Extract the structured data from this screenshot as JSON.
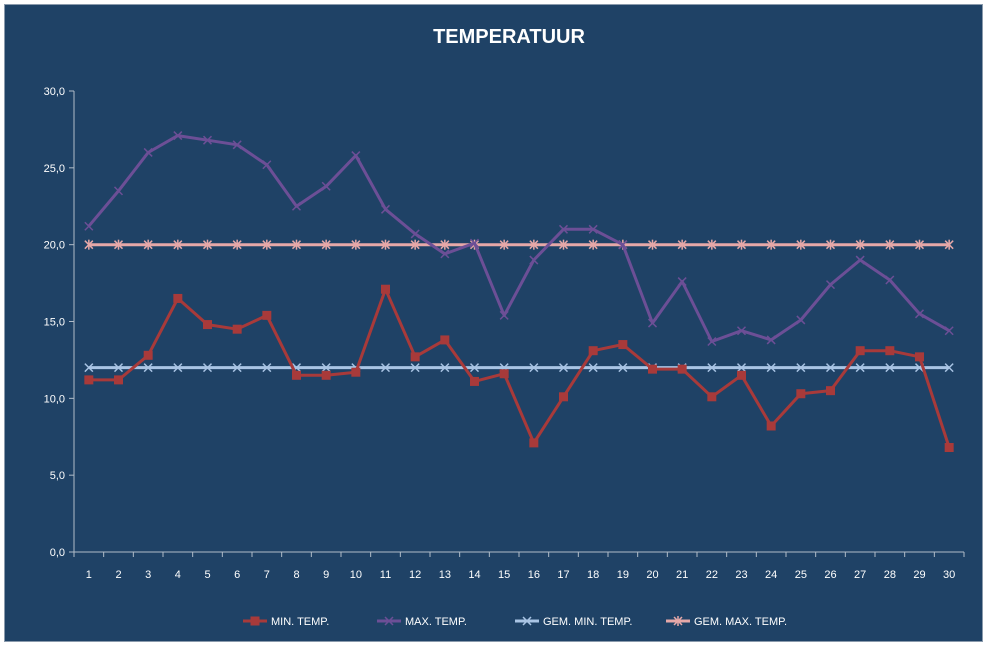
{
  "chart_data": {
    "type": "line",
    "title": "TEMPERATUUR",
    "xlabel": "",
    "ylabel": "",
    "categories": [
      "1",
      "2",
      "3",
      "4",
      "5",
      "6",
      "7",
      "8",
      "9",
      "10",
      "11",
      "12",
      "13",
      "14",
      "15",
      "16",
      "17",
      "18",
      "19",
      "20",
      "21",
      "22",
      "23",
      "24",
      "25",
      "26",
      "27",
      "28",
      "29",
      "30"
    ],
    "ylim": [
      0,
      30
    ],
    "y_ticks": [
      "0,0",
      "5,0",
      "10,0",
      "15,0",
      "20,0",
      "25,0",
      "30,0"
    ],
    "y_tick_values": [
      0,
      5,
      10,
      15,
      20,
      25,
      30
    ],
    "grid": false,
    "legend_position": "bottom",
    "series": [
      {
        "name": "MIN. TEMP.",
        "color": "#a83a3a",
        "marker": "square",
        "values": [
          11.2,
          11.2,
          12.8,
          16.5,
          14.8,
          14.5,
          15.4,
          11.5,
          11.5,
          11.7,
          17.1,
          12.7,
          13.8,
          11.1,
          11.6,
          7.1,
          10.1,
          13.1,
          13.5,
          11.9,
          11.9,
          10.1,
          11.5,
          8.2,
          10.3,
          10.5,
          13.1,
          13.1,
          12.7,
          6.8
        ]
      },
      {
        "name": "MAX. TEMP.",
        "color": "#6c4f96",
        "marker": "x",
        "values": [
          21.2,
          23.5,
          26.0,
          27.1,
          26.8,
          26.5,
          25.2,
          22.5,
          23.8,
          25.8,
          22.3,
          20.7,
          19.4,
          20.1,
          15.4,
          19.0,
          21.0,
          21.0,
          20.0,
          14.9,
          17.6,
          13.7,
          14.4,
          13.8,
          15.1,
          17.4,
          19.0,
          17.7,
          15.5,
          14.4
        ]
      },
      {
        "name": "GEM. MIN. TEMP.",
        "color": "#a9c4e4",
        "marker": "x",
        "values": [
          12,
          12,
          12,
          12,
          12,
          12,
          12,
          12,
          12,
          12,
          12,
          12,
          12,
          12,
          12,
          12,
          12,
          12,
          12,
          12,
          12,
          12,
          12,
          12,
          12,
          12,
          12,
          12,
          12,
          12
        ]
      },
      {
        "name": "GEM. MAX. TEMP.",
        "color": "#e6a8a8",
        "marker": "asterisk",
        "values": [
          20,
          20,
          20,
          20,
          20,
          20,
          20,
          20,
          20,
          20,
          20,
          20,
          20,
          20,
          20,
          20,
          20,
          20,
          20,
          20,
          20,
          20,
          20,
          20,
          20,
          20,
          20,
          20,
          20,
          20
        ]
      }
    ],
    "background_color": "#1f4266",
    "axis_color": "#b0bcc8",
    "text_color": "#ffffff"
  }
}
